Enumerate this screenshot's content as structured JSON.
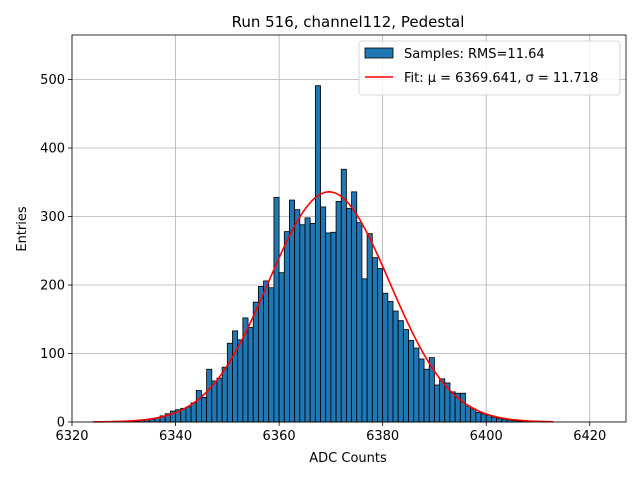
{
  "chart_data": {
    "type": "bar",
    "title": "Run 516, channel112, Pedestal",
    "xlabel": "ADC Counts",
    "ylabel": "Entries",
    "xlim": [
      6320,
      6427
    ],
    "ylim": [
      0,
      565
    ],
    "xticks": [
      6320,
      6340,
      6360,
      6380,
      6400,
      6420
    ],
    "yticks": [
      0,
      100,
      200,
      300,
      400,
      500
    ],
    "grid": true,
    "legend_position": "top-right",
    "bins": {
      "start": 6330,
      "width": 1,
      "counts": [
        1,
        1,
        1,
        2,
        3,
        4,
        6,
        9,
        12,
        16,
        18,
        20,
        22,
        28,
        46,
        36,
        77,
        60,
        64,
        80,
        115,
        133,
        120,
        152,
        138,
        175,
        198,
        206,
        196,
        328,
        218,
        278,
        324,
        310,
        288,
        298,
        290,
        491,
        314,
        276,
        277,
        322,
        369,
        312,
        336,
        291,
        209,
        275,
        240,
        224,
        188,
        176,
        162,
        148,
        135,
        119,
        108,
        92,
        77,
        94,
        54,
        63,
        57,
        44,
        42,
        42,
        23,
        19,
        14,
        12,
        10,
        7,
        5,
        4,
        3,
        2,
        1,
        1,
        1
      ]
    },
    "histogram": {
      "name": "Samples: RMS=11.64",
      "face_color": "#1f77b4",
      "edge_color": "#000000"
    },
    "fit": {
      "name": "Fit: μ = 6369.641, σ = 11.718",
      "mu": 6369.641,
      "sigma": 11.718,
      "amplitude": 336,
      "x_range": [
        6324,
        6413
      ],
      "color": "#ff0000"
    }
  }
}
